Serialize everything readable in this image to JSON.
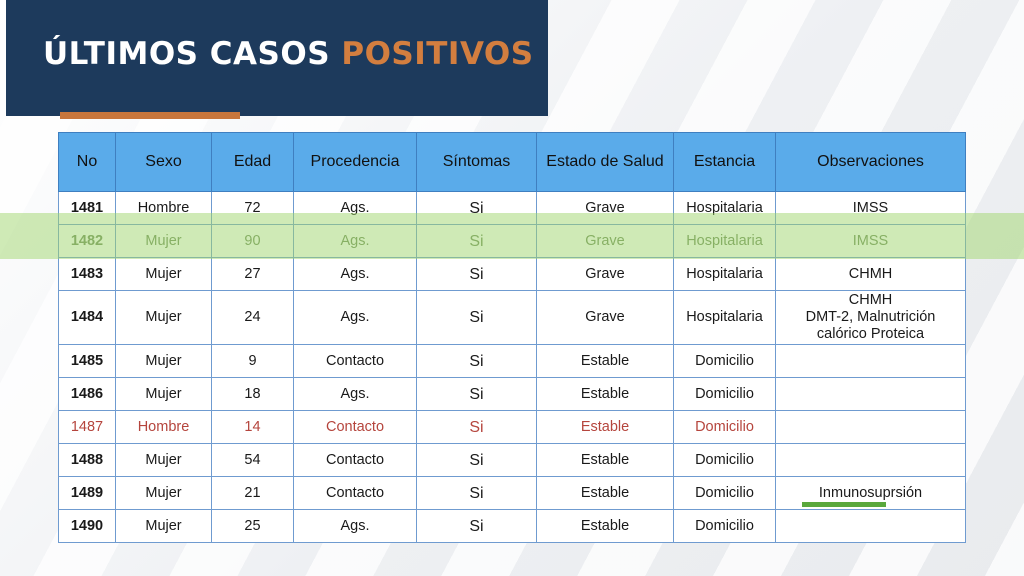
{
  "header": {
    "title_main": "ÚLTIMOS CASOS",
    "title_accent": "POSITIVOS"
  },
  "colors": {
    "header_bg": "#1d3a5c",
    "accent_orange": "#d37e3f",
    "table_header_bg": "#5aabea",
    "highlight_green": "#a0d66e",
    "alert_red": "#b5453d"
  },
  "table": {
    "columns": [
      "No",
      "Sexo",
      "Edad",
      "Procedencia",
      "Síntomas",
      "Estado de Salud",
      "Estancia",
      "Observaciones"
    ],
    "rows": [
      {
        "no": "1481",
        "sexo": "Hombre",
        "edad": "72",
        "procedencia": "Ags.",
        "sintomas": "Si",
        "estado": "Grave",
        "estancia": "Hospitalaria",
        "obs": [
          "IMSS"
        ]
      },
      {
        "no": "1482",
        "sexo": "Mujer",
        "edad": "90",
        "procedencia": "Ags.",
        "sintomas": "Si",
        "estado": "Grave",
        "estancia": "Hospitalaria",
        "obs": [
          "IMSS"
        ]
      },
      {
        "no": "1483",
        "sexo": "Mujer",
        "edad": "27",
        "procedencia": "Ags.",
        "sintomas": "Si",
        "estado": "Grave",
        "estancia": "Hospitalaria",
        "obs": [
          "CHMH"
        ]
      },
      {
        "no": "1484",
        "sexo": "Mujer",
        "edad": "24",
        "procedencia": "Ags.",
        "sintomas": "Si",
        "estado": "Grave",
        "estancia": "Hospitalaria",
        "obs": [
          "CHMH",
          "DMT-2, Malnutrición",
          "calórico Proteica"
        ]
      },
      {
        "no": "1485",
        "sexo": "Mujer",
        "edad": "9",
        "procedencia": "Contacto",
        "sintomas": "Si",
        "estado": "Estable",
        "estancia": "Domicilio",
        "obs": [
          ""
        ]
      },
      {
        "no": "1486",
        "sexo": "Mujer",
        "edad": "18",
        "procedencia": "Ags.",
        "sintomas": "Si",
        "estado": "Estable",
        "estancia": "Domicilio",
        "obs": [
          ""
        ]
      },
      {
        "no": "1487",
        "sexo": "Hombre",
        "edad": "14",
        "procedencia": "Contacto",
        "sintomas": "Si",
        "estado": "Estable",
        "estancia": "Domicilio",
        "obs": [
          ""
        ]
      },
      {
        "no": "1488",
        "sexo": "Mujer",
        "edad": "54",
        "procedencia": "Contacto",
        "sintomas": "Si",
        "estado": "Estable",
        "estancia": "Domicilio",
        "obs": [
          ""
        ]
      },
      {
        "no": "1489",
        "sexo": "Mujer",
        "edad": "21",
        "procedencia": "Contacto",
        "sintomas": "Si",
        "estado": "Estable",
        "estancia": "Domicilio",
        "obs": [
          "Inmunosuprsión"
        ]
      },
      {
        "no": "1490",
        "sexo": "Mujer",
        "edad": "25",
        "procedencia": "Ags.",
        "sintomas": "Si",
        "estado": "Estable",
        "estancia": "Domicilio",
        "obs": [
          ""
        ]
      }
    ]
  }
}
